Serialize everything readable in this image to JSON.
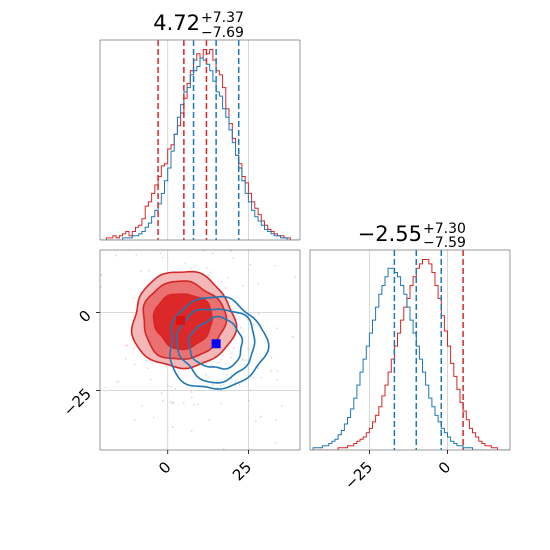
{
  "chart_data": {
    "type": "corner",
    "colors": {
      "red": "#d62728",
      "blue": "#1f77b4",
      "marker_blue": "#0000ff",
      "marker_red": "#e01010",
      "grid": "#cccccc",
      "frame": "#808080"
    },
    "panels": {
      "param1_hist": {
        "title": {
          "value": "4.72",
          "plus": "+7.37",
          "minus": "−7.69"
        },
        "x_range": [
          -21,
          41
        ],
        "red_quantiles": [
          -3,
          5,
          12
        ],
        "blue_quantiles": [
          8,
          15,
          22
        ],
        "red_hist": {
          "x_start": -21,
          "bin_width": 1,
          "counts": [
            0,
            0,
            1,
            1,
            2,
            1,
            2,
            3,
            4,
            2,
            4,
            6,
            7,
            10,
            16,
            18,
            22,
            26,
            30,
            35,
            36,
            43,
            45,
            50,
            54,
            60,
            67,
            74,
            80,
            85,
            88,
            86,
            90,
            88,
            90,
            85,
            80,
            78,
            72,
            62,
            55,
            48,
            40,
            36,
            30,
            27,
            22,
            18,
            15,
            12,
            9,
            7,
            5,
            4,
            3,
            2,
            2,
            1,
            1,
            0,
            0,
            0
          ]
        },
        "blue_hist": {
          "x_start": -21,
          "bin_width": 1,
          "counts": [
            0,
            0,
            0,
            0,
            0,
            0,
            0,
            1,
            1,
            1,
            2,
            2,
            3,
            4,
            6,
            8,
            11,
            14,
            17,
            22,
            28,
            34,
            42,
            50,
            58,
            64,
            70,
            72,
            78,
            80,
            82,
            86,
            85,
            83,
            80,
            75,
            70,
            68,
            62,
            58,
            52,
            46,
            40,
            34,
            28,
            22,
            18,
            14,
            11,
            9,
            7,
            5,
            4,
            3,
            2,
            2,
            1,
            1,
            0,
            0,
            0,
            0
          ]
        }
      },
      "param2_hist": {
        "title": {
          "value": "−2.55",
          "plus": "+7.30",
          "minus": "−7.59"
        },
        "x_range": [
          -44,
          20
        ],
        "x_ticks": [
          -25,
          0
        ],
        "x_tick_labels": [
          "−25",
          "0"
        ],
        "red_quantiles": [
          -10,
          -2,
          5
        ],
        "blue_quantiles": [
          -17,
          -10,
          -2
        ],
        "red_hist": {
          "x_start": -44,
          "bin_width": 1,
          "counts": [
            0,
            0,
            0,
            0,
            0,
            0,
            0,
            0,
            0,
            1,
            1,
            1,
            2,
            2,
            3,
            4,
            5,
            6,
            8,
            10,
            13,
            16,
            20,
            25,
            30,
            36,
            42,
            48,
            54,
            60,
            66,
            70,
            76,
            80,
            84,
            86,
            88,
            88,
            86,
            82,
            76,
            70,
            62,
            55,
            48,
            40,
            34,
            28,
            22,
            18,
            14,
            10,
            8,
            6,
            4,
            3,
            2,
            2,
            1,
            1,
            0,
            0,
            0,
            0
          ]
        },
        "blue_hist": {
          "x_start": -44,
          "bin_width": 1,
          "counts": [
            0,
            1,
            1,
            1,
            2,
            2,
            3,
            4,
            5,
            7,
            9,
            12,
            15,
            19,
            24,
            30,
            36,
            42,
            48,
            54,
            60,
            66,
            72,
            76,
            80,
            84,
            84,
            82,
            80,
            76,
            72,
            66,
            60,
            54,
            48,
            42,
            36,
            30,
            24,
            20,
            16,
            13,
            10,
            8,
            6,
            4,
            3,
            2,
            2,
            1,
            1,
            1,
            0,
            0,
            0,
            0,
            0,
            0,
            0,
            0,
            0,
            0,
            0,
            0
          ]
        }
      },
      "joint": {
        "x_range": [
          -21,
          41
        ],
        "y_range": [
          -44,
          20
        ],
        "x_ticks": [
          0,
          25
        ],
        "x_tick_labels": [
          "0",
          "25"
        ],
        "y_ticks": [
          0,
          -25
        ],
        "y_tick_labels": [
          "0",
          "−25"
        ],
        "red_center": [
          4.72,
          -2.55
        ],
        "blue_center": [
          15,
          -10
        ],
        "red_marker": [
          4,
          -2.5
        ],
        "blue_marker": [
          15,
          -10
        ],
        "red_contour_sigmas": [
          1.2,
          1.7,
          2.1
        ],
        "blue_contour_sigmas": [
          1.1,
          1.6,
          2.0
        ]
      }
    }
  }
}
